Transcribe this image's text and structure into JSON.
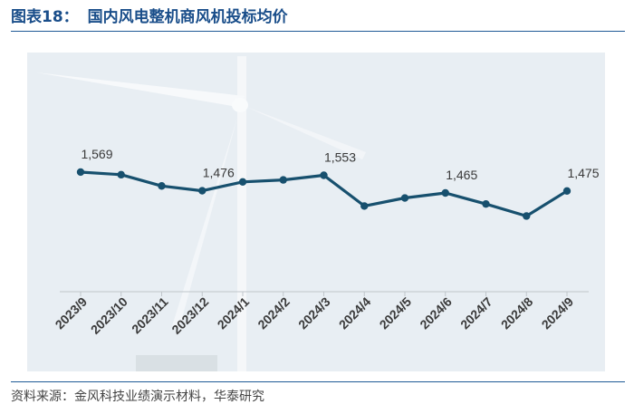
{
  "header": {
    "figure_label": "图表18：",
    "title": "国内风电整机商风机投标均价"
  },
  "footer": {
    "source": "资料来源：金风科技业绩演示材料，华泰研究"
  },
  "colors": {
    "title": "#1a4e8a",
    "line": "#17506e",
    "rule": "#1f5a96",
    "background_panel": "#e8eef3",
    "tick_label": "#3a3a3a"
  },
  "chart_data": {
    "type": "line",
    "title": "国内风电整机商风机投标均价",
    "xlabel": "",
    "ylabel": "",
    "categories": [
      "2023/9",
      "2023/10",
      "2023/11",
      "2023/12",
      "2024/1",
      "2024/2",
      "2024/3",
      "2024/4",
      "2024/5",
      "2024/6",
      "2024/7",
      "2024/8",
      "2024/9"
    ],
    "series": [
      {
        "values": [
          1569,
          1556,
          1500,
          1476,
          1520,
          1530,
          1553,
          1400,
          1440,
          1465,
          1410,
          1350,
          1475
        ]
      }
    ],
    "data_labels": [
      {
        "index": 0,
        "text": "1,569"
      },
      {
        "index": 3,
        "text": "1,476"
      },
      {
        "index": 6,
        "text": "1,553"
      },
      {
        "index": 9,
        "text": "1,465"
      },
      {
        "index": 12,
        "text": "1,475"
      }
    ],
    "ylim": [
      1000,
      1700
    ],
    "y_axis_visible": false,
    "grid": false,
    "legend": "none",
    "background": "wind turbine photo, faded"
  }
}
